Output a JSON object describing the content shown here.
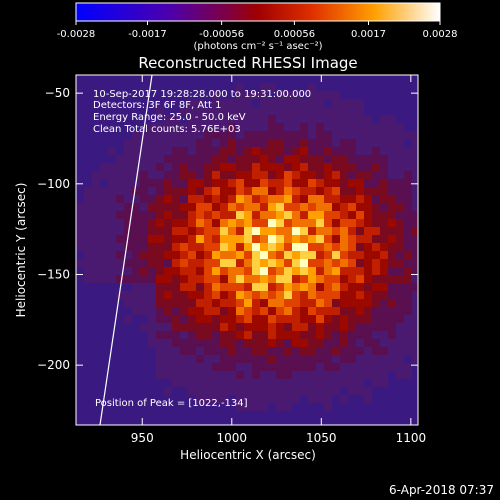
{
  "colorbar": {
    "ticks": [
      "-0.0028",
      "-0.0017",
      "-0.00056",
      "0.00056",
      "0.0017",
      "0.0028"
    ],
    "units": "(photons cm⁻² s⁻¹ asec⁻²)",
    "range": [
      -0.0028,
      0.0028
    ]
  },
  "image": {
    "title": "Reconstructed RHESSI Image",
    "xlabel": "Heliocentric X (arcsec)",
    "ylabel": "Heliocentric Y (arcsec)",
    "xticks": [
      "950",
      "1000",
      "1050",
      "1100"
    ],
    "yticks": [
      "-50",
      "-100",
      "-150",
      "-200"
    ],
    "xlim": [
      913,
      1104
    ],
    "ylim": [
      -233,
      -40
    ],
    "annotations": [
      "10-Sep-2017 19:28:28.000 to 19:31:00.000",
      "Detectors: 3F 6F 8F, Att 1",
      "Energy Range: 25.0 - 50.0 keV",
      "Clean     Total counts: 5.76E+03"
    ],
    "peak_label": "Position of Peak = [1022,-134]",
    "peak": [
      1022,
      -134
    ]
  },
  "footer": {
    "timestamp": "6-Apr-2018 07:37"
  }
}
